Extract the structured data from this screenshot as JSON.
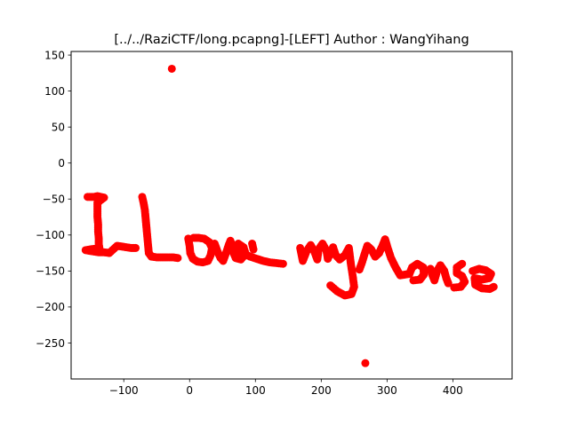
{
  "chart_data": {
    "type": "scatter",
    "title": "[../../RaziCTF/long.pcapng]-[LEFT] Author : WangYihang",
    "xlabel": "",
    "ylabel": "",
    "xlim": [
      -180,
      490
    ],
    "ylim": [
      -300,
      155
    ],
    "xticks": [
      -100,
      0,
      100,
      200,
      300,
      400
    ],
    "yticks": [
      150,
      100,
      50,
      0,
      -50,
      -100,
      -150,
      -200,
      -250
    ],
    "xtick_labels": [
      "−100",
      "0",
      "100",
      "200",
      "300",
      "400"
    ],
    "ytick_labels": [
      "150",
      "100",
      "50",
      "0",
      "−50",
      "−100",
      "−150",
      "−200",
      "−250"
    ],
    "grid": false,
    "legend": "none",
    "marker_color": "#ff0000",
    "series": [
      {
        "points": [
          [
            -27,
            131
          ],
          [
            267,
            -278
          ],
          [
            -155,
            -47
          ],
          [
            -150,
            -47
          ],
          [
            -145,
            -47
          ],
          [
            -140,
            -46
          ],
          [
            -135,
            -47
          ],
          [
            -130,
            -48
          ],
          [
            -140,
            -55
          ],
          [
            -140,
            -65
          ],
          [
            -140,
            -75
          ],
          [
            -139,
            -85
          ],
          [
            -139,
            -95
          ],
          [
            -138,
            -105
          ],
          [
            -138,
            -112
          ],
          [
            -137,
            -118
          ],
          [
            -158,
            -121
          ],
          [
            -152,
            -122
          ],
          [
            -145,
            -123
          ],
          [
            -138,
            -124
          ],
          [
            -130,
            -124
          ],
          [
            -122,
            -125
          ],
          [
            -110,
            -115
          ],
          [
            -103,
            -116
          ],
          [
            -96,
            -117
          ],
          [
            -89,
            -118
          ],
          [
            -82,
            -118
          ],
          [
            -72,
            -47
          ],
          [
            -70,
            -55
          ],
          [
            -68,
            -65
          ],
          [
            -67,
            -75
          ],
          [
            -66,
            -85
          ],
          [
            -65,
            -95
          ],
          [
            -64,
            -105
          ],
          [
            -63,
            -115
          ],
          [
            -62,
            -125
          ],
          [
            -58,
            -130
          ],
          [
            -50,
            -131
          ],
          [
            -42,
            -131
          ],
          [
            -34,
            -131
          ],
          [
            -25,
            -131
          ],
          [
            -18,
            -132
          ],
          [
            -2,
            -105
          ],
          [
            0,
            -115
          ],
          [
            1,
            -125
          ],
          [
            5,
            -133
          ],
          [
            12,
            -137
          ],
          [
            20,
            -138
          ],
          [
            28,
            -136
          ],
          [
            32,
            -128
          ],
          [
            34,
            -118
          ],
          [
            30,
            -110
          ],
          [
            22,
            -105
          ],
          [
            14,
            -104
          ],
          [
            6,
            -104
          ],
          [
            38,
            -112
          ],
          [
            42,
            -122
          ],
          [
            47,
            -132
          ],
          [
            51,
            -136
          ],
          [
            55,
            -126
          ],
          [
            59,
            -115
          ],
          [
            62,
            -108
          ],
          [
            64,
            -113
          ],
          [
            66,
            -123
          ],
          [
            70,
            -132
          ],
          [
            78,
            -134
          ],
          [
            85,
            -126
          ],
          [
            82,
            -117
          ],
          [
            74,
            -112
          ],
          [
            68,
            -120
          ],
          [
            92,
            -130
          ],
          [
            102,
            -133
          ],
          [
            112,
            -136
          ],
          [
            122,
            -138
          ],
          [
            132,
            -139
          ],
          [
            142,
            -140
          ],
          [
            95,
            -112
          ],
          [
            97,
            -120
          ],
          [
            168,
            -118
          ],
          [
            170,
            -127
          ],
          [
            172,
            -136
          ],
          [
            178,
            -122
          ],
          [
            184,
            -114
          ],
          [
            190,
            -124
          ],
          [
            194,
            -134
          ],
          [
            196,
            -120
          ],
          [
            202,
            -112
          ],
          [
            208,
            -122
          ],
          [
            210,
            -133
          ],
          [
            218,
            -117
          ],
          [
            222,
            -128
          ],
          [
            228,
            -134
          ],
          [
            236,
            -128
          ],
          [
            242,
            -118
          ],
          [
            245,
            -140
          ],
          [
            248,
            -158
          ],
          [
            250,
            -172
          ],
          [
            246,
            -182
          ],
          [
            236,
            -184
          ],
          [
            224,
            -178
          ],
          [
            214,
            -170
          ],
          [
            258,
            -148
          ],
          [
            262,
            -138
          ],
          [
            266,
            -126
          ],
          [
            270,
            -115
          ],
          [
            276,
            -120
          ],
          [
            282,
            -130
          ],
          [
            288,
            -125
          ],
          [
            293,
            -115
          ],
          [
            297,
            -106
          ],
          [
            301,
            -118
          ],
          [
            306,
            -132
          ],
          [
            313,
            -145
          ],
          [
            320,
            -156
          ],
          [
            334,
            -154
          ],
          [
            338,
            -145
          ],
          [
            346,
            -140
          ],
          [
            355,
            -145
          ],
          [
            356,
            -155
          ],
          [
            350,
            -162
          ],
          [
            340,
            -163
          ],
          [
            366,
            -147
          ],
          [
            369,
            -156
          ],
          [
            372,
            -163
          ],
          [
            376,
            -150
          ],
          [
            381,
            -142
          ],
          [
            387,
            -150
          ],
          [
            390,
            -160
          ],
          [
            393,
            -167
          ],
          [
            414,
            -140
          ],
          [
            406,
            -145
          ],
          [
            406,
            -153
          ],
          [
            414,
            -157
          ],
          [
            418,
            -165
          ],
          [
            412,
            -172
          ],
          [
            402,
            -173
          ],
          [
            430,
            -150
          ],
          [
            440,
            -147
          ],
          [
            450,
            -149
          ],
          [
            458,
            -154
          ],
          [
            455,
            -160
          ],
          [
            444,
            -162
          ],
          [
            433,
            -160
          ],
          [
            434,
            -169
          ],
          [
            444,
            -174
          ],
          [
            456,
            -175
          ],
          [
            462,
            -172
          ]
        ]
      }
    ]
  }
}
